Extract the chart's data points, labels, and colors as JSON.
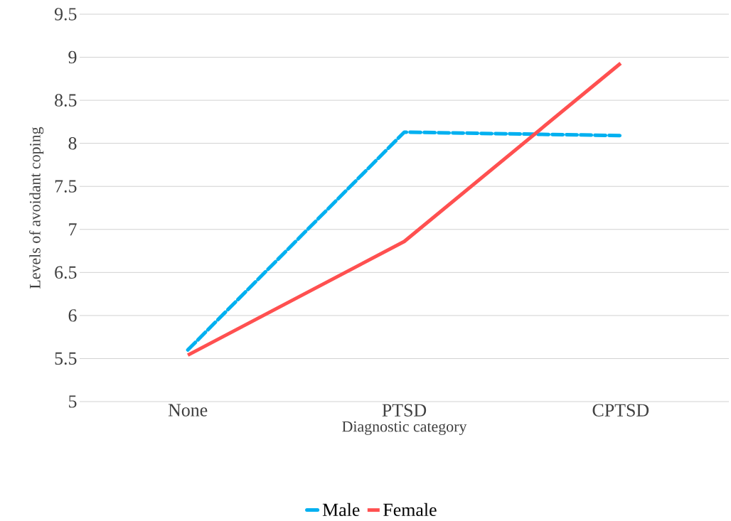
{
  "chart_data": {
    "type": "line",
    "xlabel": "Diagnostic category",
    "ylabel": "Levels of avoidant coping",
    "categories": [
      "None",
      "PTSD",
      "CPTSD"
    ],
    "series": [
      {
        "name": "Male",
        "color": "#00b0f0",
        "line_style": "dashed",
        "values": [
          5.6,
          8.13,
          8.09
        ]
      },
      {
        "name": "Female",
        "color": "#ff5050",
        "line_style": "solid",
        "values": [
          5.54,
          6.86,
          8.93
        ]
      }
    ],
    "ylim": [
      5,
      9.5
    ],
    "yticks": [
      5,
      5.5,
      6,
      6.5,
      7,
      7.5,
      8,
      8.5,
      9,
      9.5
    ],
    "grid": "y",
    "legend": "bottom",
    "marker": "none"
  }
}
